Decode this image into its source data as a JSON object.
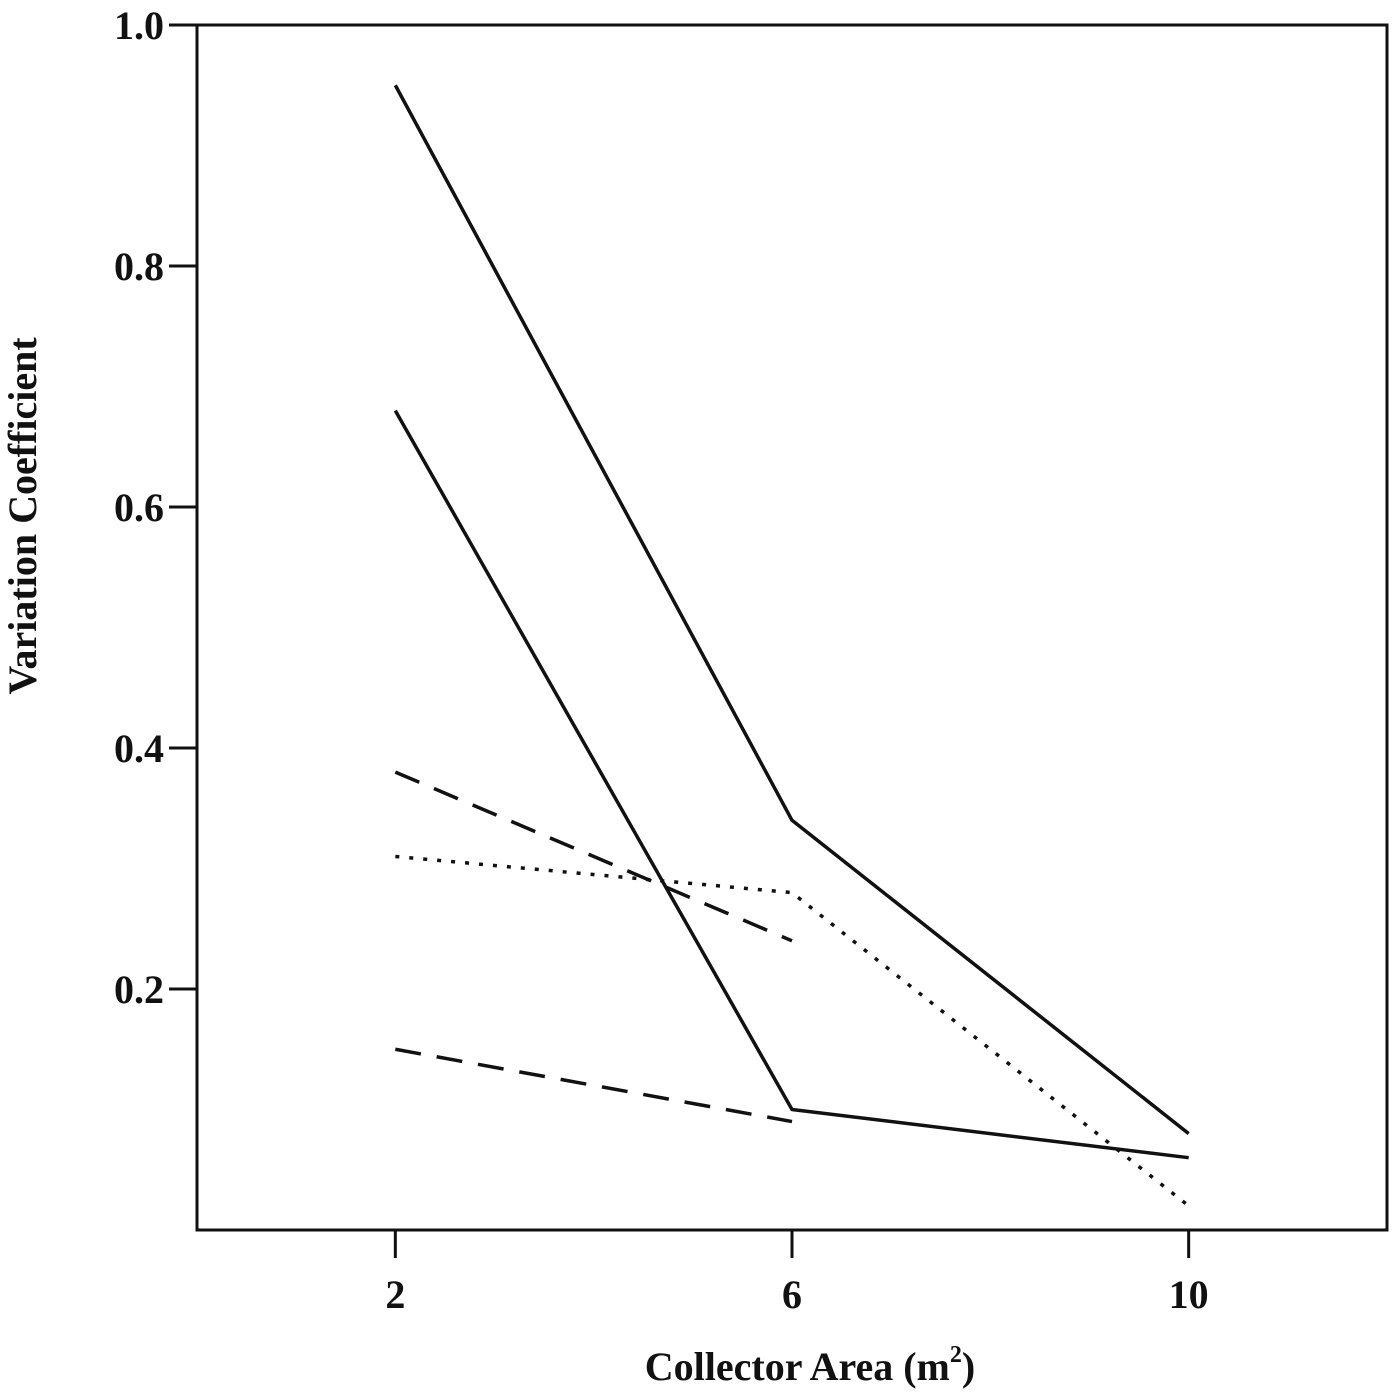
{
  "chart_data": {
    "type": "line",
    "xlabel": "Collector Area (m",
    "xlabel_sup": "2",
    "xlabel_close": ")",
    "ylabel": "Variation Coefficient",
    "x_ticks": [
      "2",
      "6",
      "10"
    ],
    "y_ticks": [
      "0.2",
      "0.4",
      "0.6",
      "0.8",
      "1.0"
    ],
    "xlim": [
      0,
      12
    ],
    "ylim": [
      0.0,
      1.0
    ],
    "grid": false,
    "series": [
      {
        "style": "solid",
        "points": [
          [
            2,
            0.95
          ],
          [
            6,
            0.34
          ],
          [
            10,
            0.08
          ]
        ]
      },
      {
        "style": "solid",
        "points": [
          [
            2,
            0.68
          ],
          [
            6,
            0.1
          ],
          [
            10,
            0.06
          ]
        ]
      },
      {
        "style": "dashed",
        "points": [
          [
            2,
            0.38
          ],
          [
            6,
            0.24
          ]
        ]
      },
      {
        "style": "dotted",
        "points": [
          [
            2,
            0.31
          ],
          [
            6,
            0.28
          ],
          [
            10,
            0.02
          ]
        ]
      },
      {
        "style": "dashed",
        "points": [
          [
            2,
            0.15
          ],
          [
            6,
            0.09
          ]
        ]
      }
    ]
  }
}
